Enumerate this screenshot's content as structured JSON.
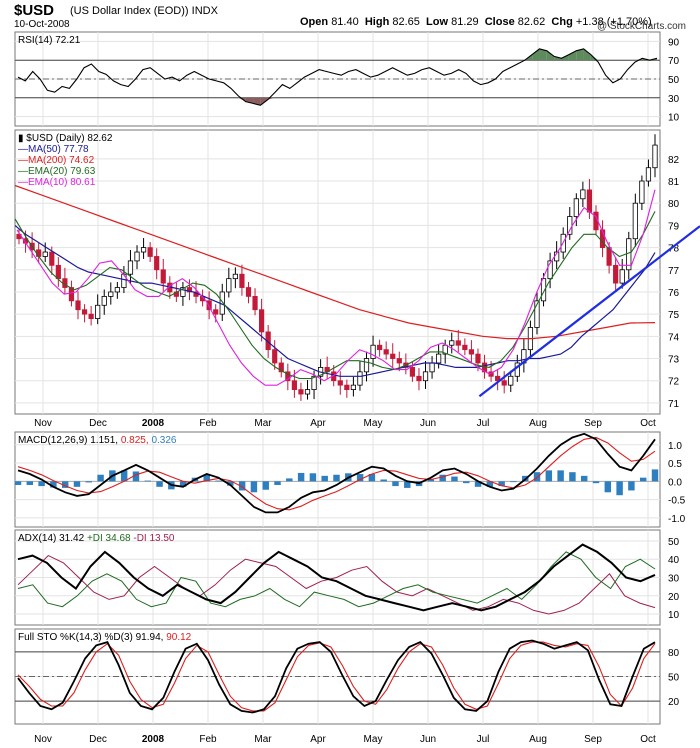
{
  "header": {
    "symbol": "$USD",
    "description": "(US Dollar Index (EOD))",
    "exchange": "INDX",
    "date": "10-Oct-2008",
    "watermark": "@ StockCharts.com",
    "open_label": "Open",
    "open": "81.40",
    "high_label": "High",
    "high": "82.65",
    "low_label": "Low",
    "low": "81.29",
    "close_label": "Close",
    "close": "82.62",
    "chg_label": "Chg",
    "chg": "+1.38 (+1.70%)"
  },
  "colors": {
    "price": "#000000",
    "ma50": "#1a1a9a",
    "ma200": "#dd1f1f",
    "ema20": "#1f6b1f",
    "ema10": "#e020e0",
    "candle_up": "#ffffff",
    "candle_down": "#c41a3a",
    "trendline": "#1f2ee0",
    "macd_hist": "#2e7fbf",
    "adx": "#000000",
    "plus_di": "#1f6b1f",
    "minus_di": "#a01f50",
    "rsi_fill": "#5e8a5e",
    "rsi_fill_low": "#8a5e5e",
    "sto_d": "#dd1f1f"
  },
  "x_axis": {
    "labels": [
      "Nov",
      "Dec",
      "2008",
      "Feb",
      "Mar",
      "Apr",
      "May",
      "Jun",
      "Jul",
      "Aug",
      "Sep",
      "Oct"
    ]
  },
  "chart_data": [
    {
      "type": "line",
      "title": "RSI(14) 72.21",
      "legend_label": "RSI(14)",
      "legend_value": "72.21",
      "ylim": [
        0,
        100
      ],
      "yticks": [
        10,
        30,
        50,
        70,
        90
      ],
      "overbought": 70,
      "oversold": 30,
      "values": [
        52,
        48,
        58,
        50,
        38,
        36,
        42,
        40,
        50,
        62,
        66,
        58,
        55,
        48,
        44,
        42,
        50,
        60,
        62,
        56,
        50,
        52,
        48,
        54,
        58,
        54,
        50,
        48,
        46,
        40,
        32,
        26,
        24,
        22,
        28,
        36,
        44,
        40,
        46,
        52,
        56,
        60,
        58,
        56,
        54,
        58,
        60,
        56,
        52,
        54,
        58,
        62,
        58,
        54,
        56,
        60,
        62,
        58,
        54,
        56,
        60,
        56,
        48,
        44,
        46,
        50,
        58,
        62,
        66,
        70,
        76,
        82,
        80,
        74,
        72,
        76,
        80,
        82,
        76,
        68,
        54,
        46,
        50,
        60,
        68,
        72,
        70,
        72
      ]
    },
    {
      "type": "candlestick",
      "title": "$USD (Daily) 82.62",
      "legend": [
        {
          "label": "$USD (Daily)",
          "value": "82.62",
          "color": "#000000"
        },
        {
          "label": "MA(50)",
          "value": "77.78",
          "color": "#1a1a9a"
        },
        {
          "label": "MA(200)",
          "value": "74.62",
          "color": "#dd1f1f"
        },
        {
          "label": "EMA(20)",
          "value": "79.63",
          "color": "#1f6b1f"
        },
        {
          "label": "EMA(10)",
          "value": "80.61",
          "color": "#e020e0"
        }
      ],
      "ylim": [
        70.5,
        83.3
      ],
      "yticks": [
        71,
        72,
        73,
        74,
        75,
        76,
        77,
        78,
        79,
        80,
        81,
        82
      ],
      "close": [
        78.4,
        78.2,
        77.9,
        77.6,
        77.8,
        77.2,
        76.6,
        76.2,
        75.6,
        75.2,
        75.0,
        74.8,
        75.4,
        75.8,
        76.0,
        76.2,
        76.8,
        77.4,
        77.8,
        78.0,
        77.6,
        77.0,
        76.4,
        76.0,
        75.8,
        76.2,
        76.0,
        75.8,
        75.6,
        75.2,
        75.0,
        76.0,
        76.6,
        76.8,
        76.2,
        75.8,
        75.2,
        74.2,
        73.4,
        72.8,
        72.4,
        72.0,
        71.6,
        71.4,
        71.6,
        72.2,
        72.6,
        72.4,
        72.0,
        71.8,
        71.6,
        71.8,
        72.4,
        73.0,
        73.6,
        73.4,
        73.2,
        73.0,
        72.8,
        72.6,
        72.2,
        72.0,
        72.4,
        72.8,
        73.2,
        73.6,
        73.8,
        73.6,
        73.4,
        73.2,
        72.8,
        72.4,
        72.2,
        72.0,
        71.8,
        72.2,
        72.8,
        73.4,
        74.4,
        75.6,
        76.6,
        77.4,
        77.8,
        78.6,
        79.4,
        80.2,
        80.6,
        79.6,
        78.8,
        78.0,
        77.2,
        76.4,
        77.0,
        78.4,
        80.0,
        81.0,
        81.6,
        82.62
      ],
      "ma50": [
        79.0,
        78.6,
        78.3,
        78.0,
        77.7,
        77.4,
        77.1,
        76.9,
        76.8,
        76.7,
        76.6,
        76.5,
        76.4,
        76.4,
        76.3,
        76.2,
        76.1,
        76.0,
        75.8,
        75.6,
        75.4,
        75.0,
        74.6,
        74.2,
        73.8,
        73.4,
        73.0,
        72.8,
        72.6,
        72.4,
        72.3,
        72.2,
        72.2,
        72.2,
        72.3,
        72.4,
        72.5,
        72.6,
        72.7,
        72.8,
        72.8,
        72.7,
        72.6,
        72.6,
        72.6,
        72.7,
        72.8,
        72.9,
        72.9,
        73.0,
        73.0,
        73.1,
        73.2,
        73.5,
        74.0,
        74.4,
        74.8,
        75.2,
        75.8,
        76.4,
        77.0,
        77.78
      ],
      "ma200": [
        80.8,
        80.4,
        80.0,
        79.6,
        79.2,
        78.8,
        78.4,
        78.0,
        77.6,
        77.2,
        76.8,
        76.4,
        76.0,
        75.6,
        75.2,
        74.9,
        74.6,
        74.4,
        74.2,
        74.0,
        73.9,
        73.9,
        74.0,
        74.2,
        74.4,
        74.6,
        74.62
      ],
      "ema20": [
        79.3,
        78.4,
        77.6,
        76.9,
        76.4,
        76.1,
        76.3,
        76.7,
        77.1,
        77.0,
        76.6,
        76.2,
        76.0,
        75.8,
        76.1,
        76.4,
        76.3,
        75.9,
        75.2,
        74.4,
        73.6,
        73.0,
        72.6,
        72.3,
        72.1,
        72.1,
        72.3,
        72.6,
        72.9,
        72.9,
        72.8,
        72.6,
        72.5,
        72.7,
        73.0,
        73.3,
        73.3,
        73.1,
        72.9,
        72.7,
        72.6,
        72.9,
        73.5,
        74.4,
        75.4,
        76.4,
        77.2,
        78.0,
        78.6,
        78.6,
        78.0,
        77.6,
        77.8,
        78.6,
        79.63
      ],
      "ema10": [
        78.8,
        78.0,
        77.2,
        76.4,
        75.9,
        76.0,
        76.6,
        77.3,
        77.4,
        76.8,
        76.1,
        75.8,
        75.8,
        76.3,
        76.6,
        76.2,
        75.6,
        74.6,
        73.6,
        72.8,
        72.2,
        71.8,
        71.8,
        72.1,
        72.5,
        72.3,
        72.0,
        72.3,
        72.9,
        73.4,
        73.2,
        72.9,
        72.5,
        72.5,
        72.9,
        73.5,
        73.7,
        73.4,
        73.0,
        72.6,
        72.3,
        72.6,
        73.4,
        74.6,
        76.0,
        77.2,
        78.0,
        79.0,
        79.8,
        79.4,
        78.2,
        77.2,
        77.2,
        78.6,
        80.61
      ],
      "trendline": {
        "from": [
          0.72,
          71.3
        ],
        "to": [
          1.0,
          78.7
        ]
      }
    },
    {
      "type": "bar+line",
      "title": "MACD(12,26,9) 1.151, 0.825, 0.326",
      "legend_label": "MACD(12,26,9)",
      "legend_macd": "1.151,",
      "legend_signal": "0.825,",
      "legend_hist": "0.326",
      "ylim": [
        -1.25,
        1.35
      ],
      "yticks": [
        -1.0,
        -0.5,
        0.0,
        0.5,
        1.0
      ],
      "ytick_labels": [
        "-1.0",
        "-0.5",
        "0.0",
        "0.5",
        "1.0"
      ],
      "macd": [
        0.3,
        0.2,
        0.05,
        -0.15,
        -0.3,
        -0.4,
        -0.35,
        -0.1,
        0.15,
        0.3,
        0.45,
        0.3,
        0.1,
        -0.1,
        -0.15,
        0.05,
        0.2,
        0.1,
        -0.1,
        -0.4,
        -0.7,
        -0.85,
        -0.85,
        -0.7,
        -0.45,
        -0.3,
        -0.25,
        -0.1,
        0.1,
        0.25,
        0.4,
        0.35,
        0.15,
        0.0,
        -0.05,
        0.1,
        0.3,
        0.35,
        0.2,
        0.0,
        -0.15,
        -0.25,
        -0.2,
        0.05,
        0.35,
        0.7,
        1.0,
        1.2,
        1.3,
        1.15,
        0.75,
        0.4,
        0.3,
        0.7,
        1.151
      ],
      "signal": [
        0.4,
        0.3,
        0.18,
        0.02,
        -0.12,
        -0.25,
        -0.32,
        -0.28,
        -0.15,
        0.0,
        0.18,
        0.28,
        0.25,
        0.12,
        0.0,
        -0.05,
        0.02,
        0.08,
        0.02,
        -0.15,
        -0.4,
        -0.62,
        -0.75,
        -0.78,
        -0.68,
        -0.52,
        -0.4,
        -0.28,
        -0.12,
        0.05,
        0.2,
        0.3,
        0.28,
        0.18,
        0.08,
        0.05,
        0.12,
        0.22,
        0.25,
        0.15,
        0.0,
        -0.12,
        -0.18,
        -0.1,
        0.1,
        0.4,
        0.7,
        0.95,
        1.15,
        1.2,
        1.05,
        0.78,
        0.55,
        0.6,
        0.825
      ]
    },
    {
      "type": "line",
      "title": "ADX(14) 31.42 +DI 34.68 -DI 13.50",
      "legend_label": "ADX(14)",
      "legend_adx": "31.42",
      "legend_plus": "+DI 34.68",
      "legend_minus": "-DI 13.50",
      "ylim": [
        4,
        56
      ],
      "yticks": [
        10,
        20,
        30,
        40,
        50
      ],
      "adx": [
        40,
        42,
        38,
        30,
        24,
        36,
        44,
        38,
        30,
        24,
        20,
        26,
        22,
        18,
        16,
        22,
        30,
        38,
        44,
        40,
        36,
        30,
        28,
        24,
        20,
        18,
        16,
        14,
        12,
        14,
        16,
        14,
        12,
        14,
        18,
        22,
        28,
        36,
        42,
        48,
        44,
        38,
        30,
        28,
        31.42
      ],
      "plus_di": [
        24,
        26,
        16,
        14,
        20,
        28,
        32,
        28,
        18,
        14,
        16,
        30,
        28,
        16,
        14,
        18,
        20,
        24,
        18,
        14,
        22,
        20,
        18,
        14,
        16,
        20,
        24,
        26,
        22,
        20,
        18,
        16,
        20,
        24,
        18,
        26,
        36,
        44,
        40,
        30,
        24,
        36,
        40,
        34.68
      ],
      "minus_di": [
        26,
        34,
        42,
        38,
        30,
        22,
        18,
        20,
        30,
        36,
        30,
        24,
        20,
        26,
        34,
        40,
        38,
        36,
        30,
        24,
        28,
        30,
        34,
        36,
        28,
        22,
        20,
        24,
        20,
        16,
        12,
        14,
        18,
        16,
        12,
        10,
        12,
        16,
        24,
        32,
        20,
        16,
        13.5
      ]
    },
    {
      "type": "line",
      "title": "Full STO %K(14,3) %D(3) 91.94, 90.12",
      "legend_label": "Full STO %K(14,3) %D(3)",
      "legend_k": "91.94,",
      "legend_d": "90.12",
      "ylim": [
        0,
        100
      ],
      "yticks": [
        20,
        50,
        80
      ],
      "overbought": 80,
      "oversold": 20,
      "k": [
        48,
        30,
        14,
        10,
        18,
        44,
        72,
        88,
        92,
        64,
        30,
        14,
        10,
        24,
        56,
        84,
        90,
        70,
        40,
        16,
        8,
        6,
        10,
        26,
        60,
        84,
        90,
        92,
        80,
        52,
        26,
        14,
        20,
        46,
        70,
        86,
        92,
        78,
        52,
        24,
        10,
        8,
        20,
        56,
        84,
        92,
        94,
        90,
        84,
        88,
        92,
        82,
        46,
        16,
        14,
        50,
        84,
        91.94
      ],
      "d": [
        52,
        38,
        22,
        14,
        14,
        30,
        58,
        80,
        90,
        76,
        44,
        22,
        12,
        16,
        42,
        72,
        88,
        80,
        52,
        26,
        12,
        8,
        8,
        18,
        46,
        74,
        88,
        91,
        86,
        64,
        38,
        20,
        16,
        34,
        60,
        80,
        90,
        86,
        64,
        36,
        16,
        10,
        14,
        42,
        72,
        88,
        92,
        92,
        88,
        86,
        90,
        88,
        62,
        28,
        14,
        36,
        72,
        90.12
      ]
    }
  ]
}
